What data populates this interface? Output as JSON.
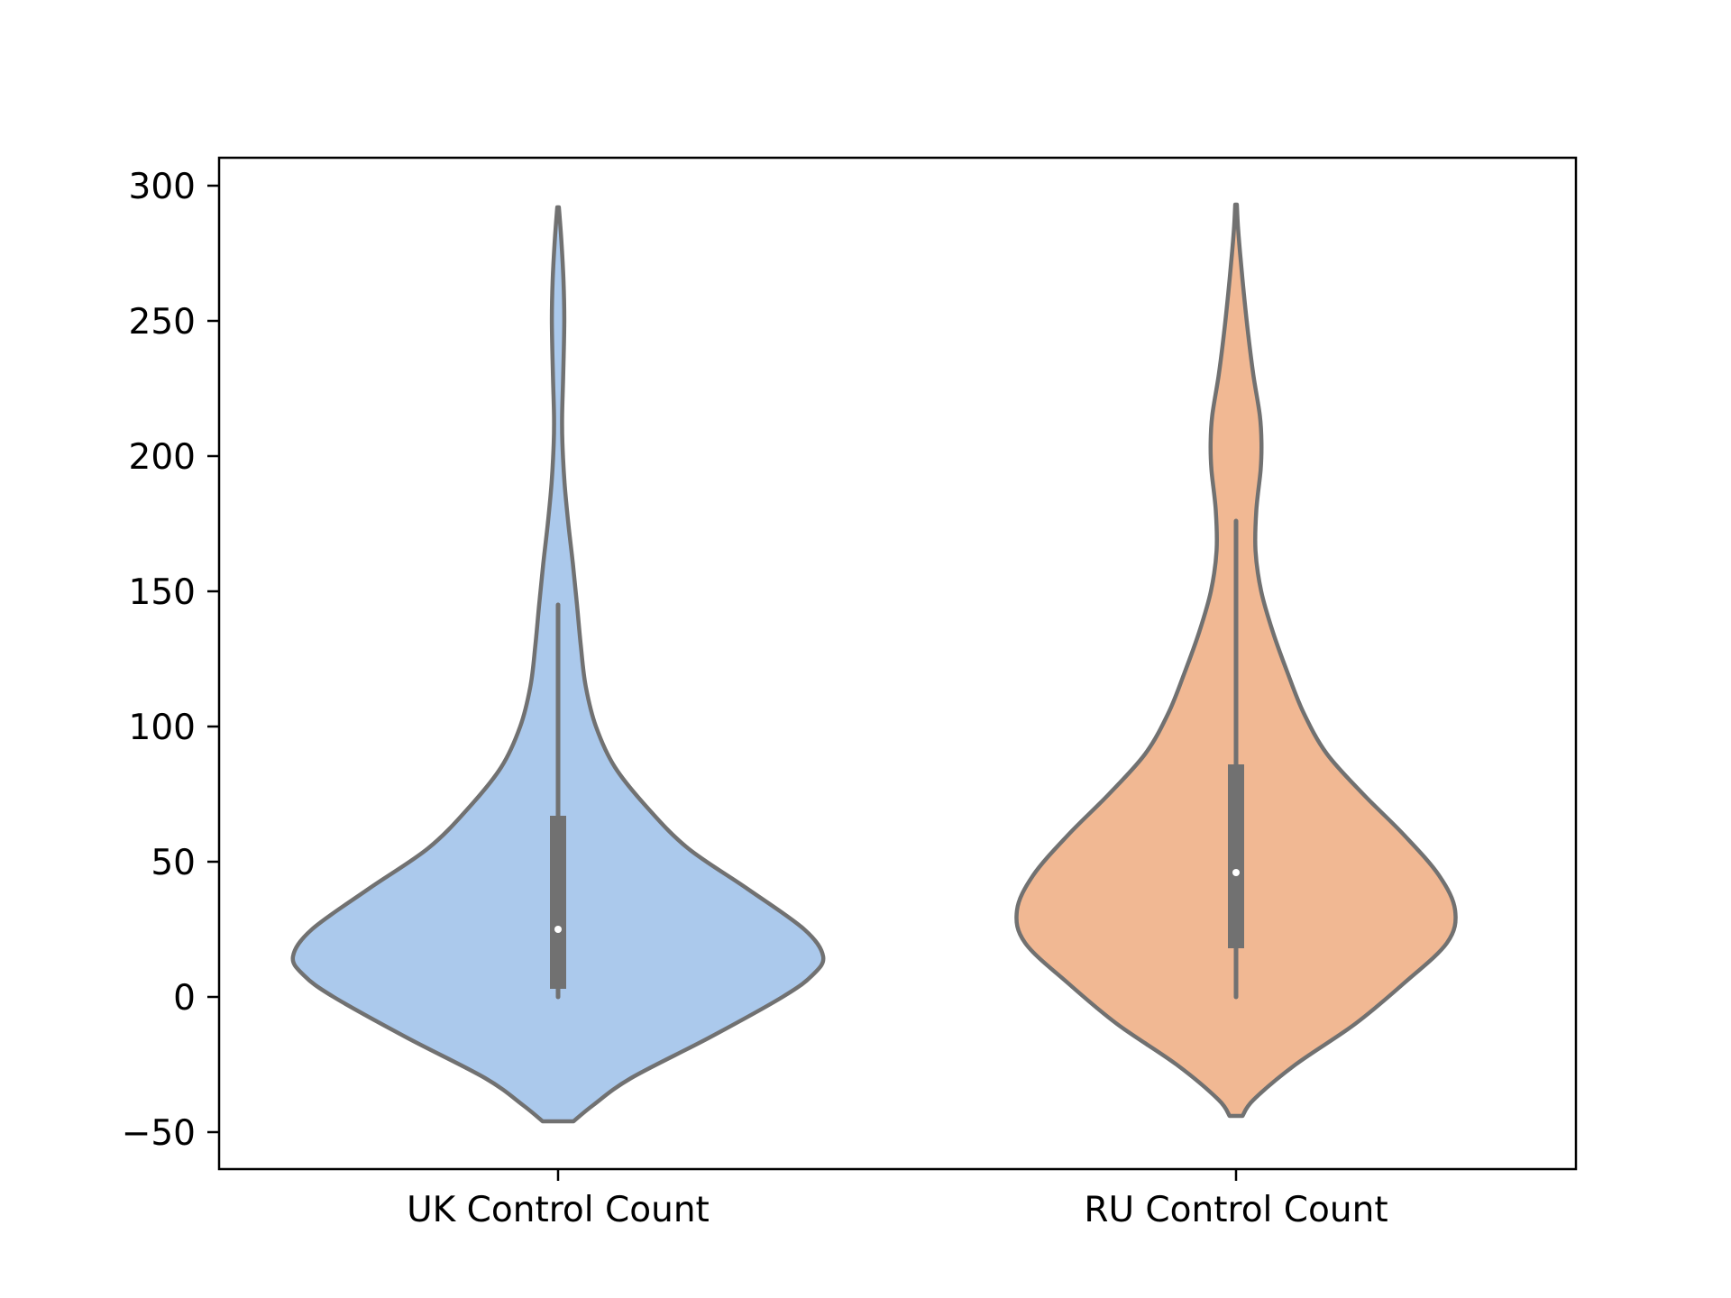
{
  "chart_data": {
    "type": "violin",
    "title": "",
    "xlabel": "",
    "ylabel": "",
    "ylim": [
      -60,
      311
    ],
    "yticks": [
      -50,
      0,
      50,
      100,
      150,
      200,
      250,
      300
    ],
    "ytick_labels": [
      "−50",
      "0",
      "50",
      "100",
      "150",
      "200",
      "250",
      "300"
    ],
    "grid": false,
    "legend": "none",
    "categories": [
      "UK Control Count",
      "RU Control Count"
    ],
    "series": [
      {
        "category": "UK Control Count",
        "color": "#abc9ec",
        "stats": {
          "min": 0,
          "q1": 3,
          "median": 25,
          "q3": 67,
          "max": 145,
          "whisker_low": 0,
          "whisker_high": 145
        },
        "range": [
          -46,
          292
        ],
        "density": [
          [
            -46,
            0.057
          ],
          [
            -40,
            0.13
          ],
          [
            -30,
            0.27
          ],
          [
            -15,
            0.56
          ],
          [
            0,
            0.83
          ],
          [
            8,
            0.94
          ],
          [
            15,
            0.98
          ],
          [
            25,
            0.91
          ],
          [
            40,
            0.7
          ],
          [
            55,
            0.48
          ],
          [
            70,
            0.33
          ],
          [
            85,
            0.21
          ],
          [
            100,
            0.14
          ],
          [
            115,
            0.102
          ],
          [
            130,
            0.084
          ],
          [
            145,
            0.07
          ],
          [
            160,
            0.055
          ],
          [
            175,
            0.038
          ],
          [
            190,
            0.024
          ],
          [
            205,
            0.016
          ],
          [
            215,
            0.015
          ],
          [
            230,
            0.019
          ],
          [
            250,
            0.023
          ],
          [
            265,
            0.02
          ],
          [
            280,
            0.012
          ],
          [
            292,
            0.003
          ]
        ]
      },
      {
        "category": "RU Control Count",
        "color": "#f1b893",
        "stats": {
          "min": 0,
          "q1": 18,
          "median": 46,
          "q3": 86,
          "max": 176,
          "whisker_low": 0,
          "whisker_high": 176
        },
        "range": [
          -44,
          293
        ],
        "density": [
          [
            -44,
            0.024
          ],
          [
            -38,
            0.065
          ],
          [
            -25,
            0.22
          ],
          [
            -10,
            0.44
          ],
          [
            5,
            0.62
          ],
          [
            20,
            0.78
          ],
          [
            32,
            0.81
          ],
          [
            45,
            0.75
          ],
          [
            60,
            0.62
          ],
          [
            75,
            0.47
          ],
          [
            90,
            0.335
          ],
          [
            105,
            0.25
          ],
          [
            120,
            0.19
          ],
          [
            135,
            0.136
          ],
          [
            150,
            0.093
          ],
          [
            165,
            0.072
          ],
          [
            180,
            0.075
          ],
          [
            195,
            0.091
          ],
          [
            205,
            0.094
          ],
          [
            215,
            0.088
          ],
          [
            230,
            0.064
          ],
          [
            245,
            0.045
          ],
          [
            260,
            0.029
          ],
          [
            275,
            0.015
          ],
          [
            285,
            0.007
          ],
          [
            293,
            0.003
          ]
        ]
      }
    ]
  }
}
